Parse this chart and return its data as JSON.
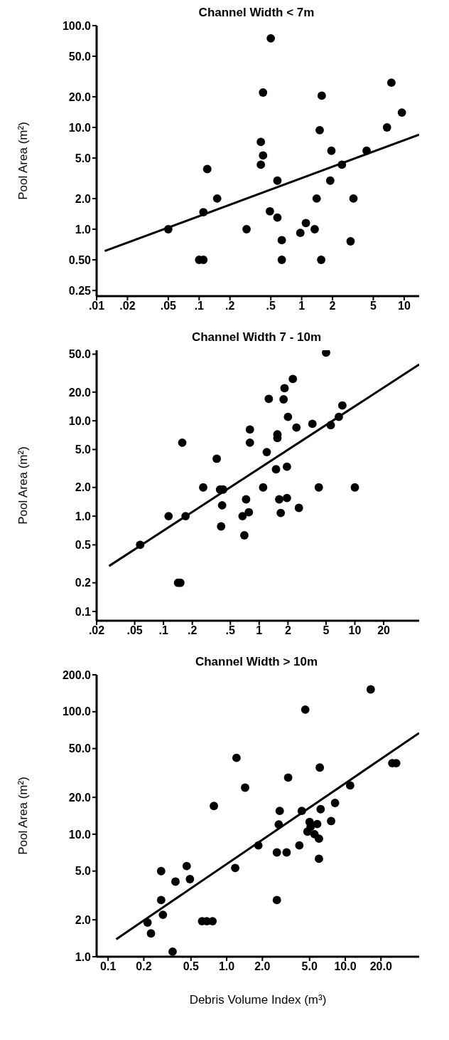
{
  "chart_data": [
    {
      "type": "scatter",
      "title": "Channel Width < 7m",
      "ylabel": "Pool Area (m²)",
      "log": "xy",
      "xlim": [
        0.01,
        14
      ],
      "ylim": [
        0.22,
        100
      ],
      "xticks": [
        {
          "value": 0.01,
          "label": ".01"
        },
        {
          "value": 0.02,
          "label": ".02"
        },
        {
          "value": 0.05,
          "label": ".05"
        },
        {
          "value": 0.1,
          "label": ".1"
        },
        {
          "value": 0.2,
          "label": ".2"
        },
        {
          "value": 0.5,
          "label": ".5"
        },
        1,
        2,
        5,
        10
      ],
      "yticks": [
        {
          "value": 0.25,
          "label": "0.25"
        },
        {
          "value": 0.5,
          "label": "0.50"
        },
        {
          "value": 1,
          "label": "1.0"
        },
        {
          "value": 2,
          "label": "2.0"
        },
        {
          "value": 5,
          "label": "5.0"
        },
        {
          "value": 10,
          "label": "10.0"
        },
        {
          "value": 20,
          "label": "20.0"
        },
        {
          "value": 50,
          "label": "50.0"
        },
        {
          "value": 100,
          "label": "100.0"
        }
      ],
      "series": [
        {
          "marker": "circle",
          "color": "#000000",
          "x": [
            0.5,
            0.42,
            1.57,
            7.5,
            9.5,
            6.8,
            1.5,
            0.4,
            0.42,
            0.4,
            0.12,
            0.15,
            0.11,
            0.05,
            0.1,
            0.11,
            0.29,
            0.49,
            0.58,
            0.58,
            0.64,
            0.64,
            0.97,
            1.1,
            1.34,
            1.4,
            1.55,
            1.95,
            1.9,
            2.47,
            3.2,
            3,
            4.3
          ],
          "values": [
            75,
            22,
            20.5,
            27.5,
            14,
            10,
            9.4,
            7.2,
            5.3,
            4.3,
            3.9,
            2,
            1.47,
            1,
            0.5,
            0.5,
            1,
            1.5,
            1.3,
            3,
            0.78,
            0.5,
            0.92,
            1.15,
            1,
            2,
            0.5,
            5.9,
            3,
            4.3,
            2,
            0.76,
            5.9
          ]
        },
        {
          "type": "line",
          "color": "#000000",
          "x": [
            0.012,
            14
          ],
          "values": [
            0.61,
            8.5
          ]
        }
      ]
    },
    {
      "type": "scatter",
      "title": "Channel Width 7 - 10m",
      "ylabel": "Pool Area (m²)",
      "log": "xy",
      "xlim": [
        0.02,
        47
      ],
      "ylim": [
        0.08,
        55
      ],
      "xticks": [
        {
          "value": 0.02,
          "label": ".02"
        },
        {
          "value": 0.05,
          "label": ".05"
        },
        {
          "value": 0.1,
          "label": ".1"
        },
        {
          "value": 0.2,
          "label": ".2"
        },
        {
          "value": 0.5,
          "label": ".5"
        },
        1,
        2,
        5,
        10,
        20
      ],
      "yticks": [
        0.1,
        0.2,
        0.5,
        {
          "value": 1,
          "label": "1.0"
        },
        {
          "value": 2,
          "label": "2.0"
        },
        {
          "value": 5,
          "label": "5.0"
        },
        {
          "value": 10,
          "label": "10.0"
        },
        {
          "value": 20,
          "label": "20.0"
        },
        {
          "value": 50,
          "label": "50.0"
        }
      ],
      "series": [
        {
          "marker": "circle",
          "color": "#000000",
          "x": [
            5,
            2.25,
            1.84,
            1.26,
            1.8,
            2,
            2.45,
            3.6,
            5.6,
            6.8,
            7.4,
            0.8,
            0.8,
            1.55,
            1.55,
            1.2,
            1.95,
            1.5,
            0.157,
            0.36,
            0.26,
            0.39,
            0.42,
            0.41,
            0.4,
            0.113,
            0.17,
            0.057,
            0.142,
            0.15,
            1.1,
            0.73,
            0.78,
            0.67,
            0.7,
            1.62,
            1.95,
            1.68,
            2.6,
            4.2,
            10
          ],
          "values": [
            52,
            27.5,
            22,
            17,
            16.8,
            11,
            8.5,
            9.3,
            9,
            11,
            14.5,
            8.1,
            5.9,
            7.2,
            6.6,
            4.7,
            3.3,
            3.1,
            5.9,
            4,
            2,
            1.9,
            1.9,
            1.3,
            0.78,
            1,
            1,
            0.5,
            0.2,
            0.2,
            2,
            1.5,
            1.1,
            1,
            0.63,
            1.5,
            1.55,
            1.08,
            1.22,
            2,
            2
          ]
        },
        {
          "type": "line",
          "color": "#000000",
          "x": [
            0.027,
            47
          ],
          "values": [
            0.3,
            39
          ]
        }
      ]
    },
    {
      "type": "scatter",
      "title": "Channel Width > 10m",
      "ylabel": "Pool Area (m²)",
      "xlabel": "Debris Volume Index (m³)",
      "log": "xy",
      "xlim": [
        0.08,
        42
      ],
      "ylim": [
        1,
        200
      ],
      "xticks": [
        0.1,
        0.2,
        0.5,
        {
          "value": 1,
          "label": "1.0"
        },
        {
          "value": 2,
          "label": "2.0"
        },
        {
          "value": 5,
          "label": "5.0"
        },
        {
          "value": 10,
          "label": "10.0"
        },
        {
          "value": 20,
          "label": "20.0"
        }
      ],
      "yticks": [
        {
          "value": 1,
          "label": "1.0"
        },
        {
          "value": 2,
          "label": "2.0"
        },
        {
          "value": 5,
          "label": "5.0"
        },
        {
          "value": 10,
          "label": "10.0"
        },
        {
          "value": 20,
          "label": "20.0"
        },
        {
          "value": 50,
          "label": "50.0"
        },
        {
          "value": 100,
          "label": "100.0"
        },
        {
          "value": 200,
          "label": "200.0"
        }
      ],
      "series": [
        {
          "marker": "circle",
          "color": "#000000",
          "x": [
            16.4,
            4.6,
            1.21,
            1.43,
            6.1,
            3.3,
            0.78,
            24.9,
            26.9,
            11,
            8.2,
            6.2,
            4.3,
            2.8,
            2.75,
            5,
            5.8,
            4.8,
            5.5,
            5.1,
            7.6,
            6,
            6,
            4.1,
            1.85,
            2.65,
            3.2,
            1.18,
            2.65,
            0.28,
            0.46,
            0.49,
            0.37,
            0.28,
            0.29,
            0.215,
            0.23,
            0.35,
            0.62,
            0.68,
            0.76
          ],
          "values": [
            152,
            104,
            42,
            24,
            35,
            29,
            17,
            38,
            38,
            25,
            18,
            16,
            15.5,
            15.5,
            12,
            12.6,
            12.1,
            10.5,
            10,
            11.5,
            12.8,
            9.2,
            6.3,
            8.1,
            8.1,
            7.1,
            7.1,
            5.3,
            2.9,
            5,
            5.5,
            4.3,
            4.1,
            2.9,
            2.2,
            1.9,
            1.55,
            1.1,
            1.95,
            1.95,
            1.95
          ]
        },
        {
          "type": "line",
          "color": "#000000",
          "x": [
            0.117,
            42
          ],
          "values": [
            1.39,
            67
          ]
        }
      ]
    }
  ]
}
